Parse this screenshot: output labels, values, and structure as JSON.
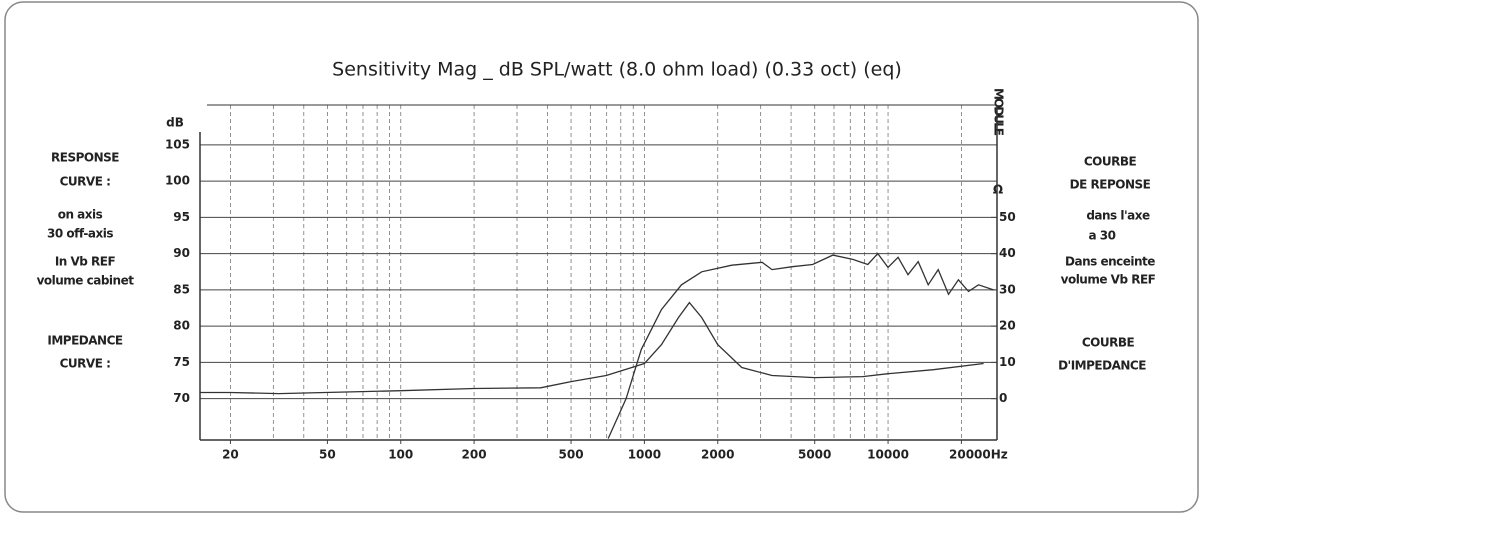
{
  "chart_data": {
    "type": "line",
    "title": "Sensitivity Mag _ dB SPL/watt (8.0 ohm load) (0.33 oct) (eq)",
    "y_label": "dB",
    "y2_label": "MODULE",
    "y2_unit": "Ω",
    "log_x": true,
    "xlim": [
      15,
      28000
    ],
    "xticks": [
      20,
      50,
      100,
      200,
      500,
      1000,
      2000,
      5000,
      10000,
      {
        "value": 20000,
        "label": "20000Hz"
      }
    ],
    "xgrid": [
      20,
      30,
      40,
      50,
      60,
      70,
      80,
      90,
      100,
      200,
      300,
      400,
      500,
      600,
      700,
      800,
      900,
      1000,
      2000,
      3000,
      4000,
      5000,
      6000,
      7000,
      8000,
      9000,
      10000,
      20000
    ],
    "ylim": [
      64.3,
      110.5
    ],
    "yticks": [
      70,
      75,
      80,
      85,
      90,
      95,
      100,
      105
    ],
    "y2lim": [
      -11.4,
      81
    ],
    "y2ticks": [
      0,
      10,
      20,
      30,
      40,
      50
    ],
    "grid": true,
    "series": [
      {
        "name": "RESPONSE CURVE",
        "color": "#333333",
        "axis": "y",
        "x": [
          710,
          841,
          971,
          1175,
          1420,
          1718,
          2285,
          3040,
          3340,
          4045,
          4900,
          5930,
          7170,
          8260,
          9080,
          10000,
          11000,
          12080,
          13300,
          14620,
          16070,
          17700,
          19450,
          21380,
          23500,
          27100
        ],
        "values": [
          64.5,
          70,
          76.8,
          82.3,
          85.7,
          87.5,
          88.4,
          88.8,
          87.8,
          88.2,
          88.5,
          89.8,
          89.2,
          88.5,
          90,
          88.1,
          89.5,
          87.1,
          88.9,
          85.7,
          87.8,
          84.4,
          86.4,
          84.8,
          85.7,
          85
        ]
      },
      {
        "name": "IMPEDANCE CURVE",
        "color": "#333333",
        "axis": "y2",
        "x": [
          15,
          20,
          31.6,
          100,
          200,
          375,
          500,
          697,
          1000,
          1175,
          1380,
          1530,
          1718,
          2000,
          2510,
          3340,
          5000,
          7870,
          10000,
          15350,
          24660
        ],
        "values": [
          1.7,
          1.7,
          1.4,
          2.2,
          2.8,
          3.0,
          4.7,
          6.4,
          9.7,
          14.9,
          22.4,
          26.5,
          22.4,
          14.9,
          8.6,
          6.4,
          5.8,
          6.1,
          6.9,
          8.0,
          9.7
        ]
      }
    ],
    "left_notes": [
      "RESPONSE",
      "CURVE :",
      "on axis",
      "30  off-axis",
      "In Vb REF",
      "volume cabinet",
      "IMPEDANCE",
      "CURVE :"
    ],
    "right_notes": [
      "COURBE",
      "DE REPONSE",
      "dans l'axe",
      "a 30",
      "Dans enceinte",
      "volume  Vb REF",
      "COURBE",
      "D'IMPEDANCE"
    ]
  }
}
